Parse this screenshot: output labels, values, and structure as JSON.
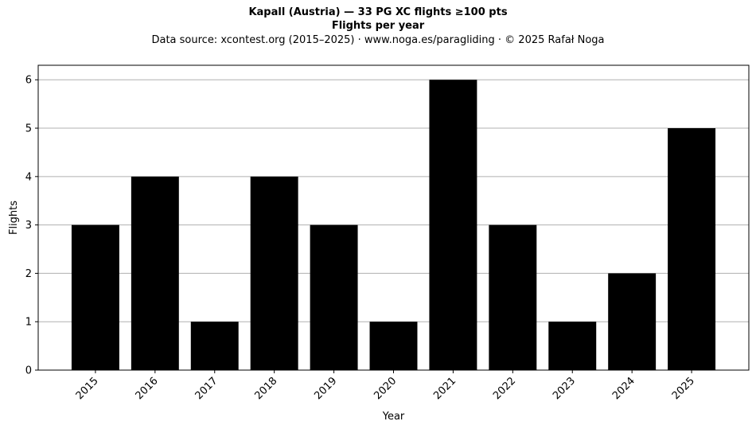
{
  "header": {
    "title": "Kapall (Austria)  —  33 PG XC flights ≥100 pts",
    "subtitle_bold": "Flights per year",
    "source": "Data source: xcontest.org (2015–2025)  ·  www.noga.es/paragliding  ·  © 2025 Rafał Noga"
  },
  "chart_data": {
    "type": "bar",
    "title": "Kapall (Austria)  —  33 PG XC flights ≥100 pts",
    "subtitle": "Flights per year",
    "xlabel": "Year",
    "ylabel": "Flights",
    "categories": [
      "2015",
      "2016",
      "2017",
      "2018",
      "2019",
      "2020",
      "2021",
      "2022",
      "2023",
      "2024",
      "2025"
    ],
    "values": [
      3,
      4,
      1,
      4,
      3,
      1,
      6,
      3,
      1,
      2,
      5
    ],
    "ylim": [
      0,
      6.3
    ],
    "yticks": [
      0,
      1,
      2,
      3,
      4,
      5,
      6
    ],
    "grid": "horizontal",
    "bar_color": "#000000",
    "grid_color": "#b0b0b0"
  }
}
